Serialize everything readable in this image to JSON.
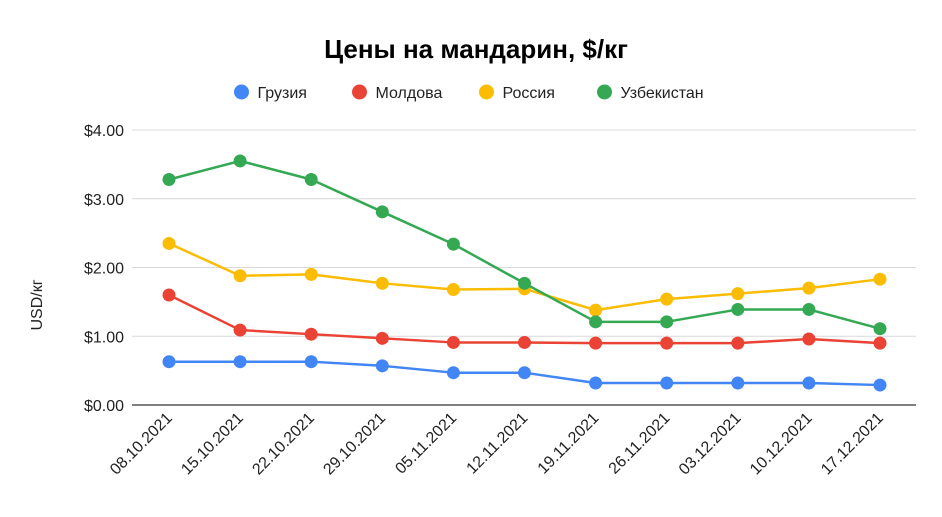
{
  "chart_data": {
    "type": "line",
    "title": "Цены на мандарин, $/кг",
    "ylabel": "USD/кг",
    "xlabel": "",
    "categories": [
      "08.10.2021",
      "15.10.2021",
      "22.10.2021",
      "29.10.2021",
      "05.11.2021",
      "12.11.2021",
      "19.11.2021",
      "26.11.2021",
      "03.12.2021",
      "10.12.2021",
      "17.12.2021"
    ],
    "ylim": [
      0,
      4
    ],
    "yticks": [
      0,
      1,
      2,
      3,
      4
    ],
    "ytick_labels": [
      "$0.00",
      "$1.00",
      "$2.00",
      "$3.00",
      "$4.00"
    ],
    "grid": true,
    "legend_position": "top",
    "series": [
      {
        "name": "Грузия",
        "color": "#4285F4",
        "values": [
          0.63,
          0.63,
          0.63,
          0.57,
          0.47,
          0.47,
          0.32,
          0.32,
          0.32,
          0.32,
          0.29
        ]
      },
      {
        "name": "Молдова",
        "color": "#EA4335",
        "values": [
          1.6,
          1.09,
          1.03,
          0.97,
          0.91,
          0.91,
          0.9,
          0.9,
          0.9,
          0.96,
          0.9
        ]
      },
      {
        "name": "Россия",
        "color": "#FBBC04",
        "values": [
          2.35,
          1.88,
          1.9,
          1.77,
          1.68,
          1.69,
          1.38,
          1.54,
          1.62,
          1.7,
          1.83
        ]
      },
      {
        "name": "Узбекистан",
        "color": "#34A853",
        "values": [
          3.28,
          3.55,
          3.28,
          2.81,
          2.34,
          1.77,
          1.21,
          1.21,
          1.39,
          1.39,
          1.11
        ]
      }
    ]
  }
}
